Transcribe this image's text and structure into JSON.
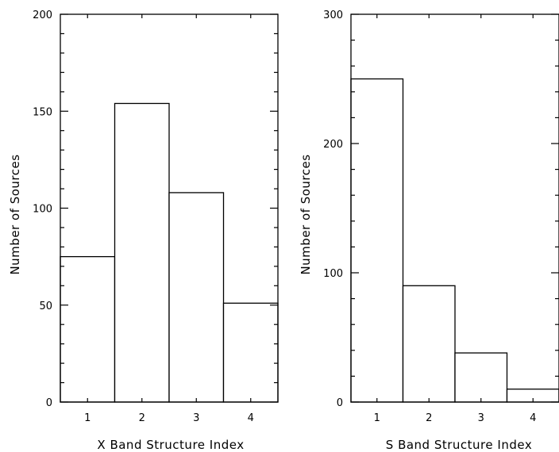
{
  "chart_data": [
    {
      "type": "bar",
      "title": "",
      "xlabel": "X Band Structure Index",
      "ylabel": "Number of Sources",
      "categories": [
        "1",
        "2",
        "3",
        "4"
      ],
      "values": [
        75,
        154,
        108,
        51
      ],
      "ylim": [
        0,
        200
      ],
      "yticks": [
        "0",
        "50",
        "100",
        "150",
        "200"
      ],
      "grid": false,
      "legend": "none",
      "bar_fill": "#ffffff",
      "stroke_color": "#000000"
    },
    {
      "type": "bar",
      "title": "",
      "xlabel": "S Band Structure Index",
      "ylabel": "Number of Sources",
      "categories": [
        "1",
        "2",
        "3",
        "4"
      ],
      "values": [
        250,
        90,
        38,
        10
      ],
      "ylim": [
        0,
        300
      ],
      "yticks": [
        "0",
        "100",
        "200",
        "300"
      ],
      "grid": false,
      "legend": "none",
      "bar_fill": "#ffffff",
      "stroke_color": "#000000"
    }
  ]
}
